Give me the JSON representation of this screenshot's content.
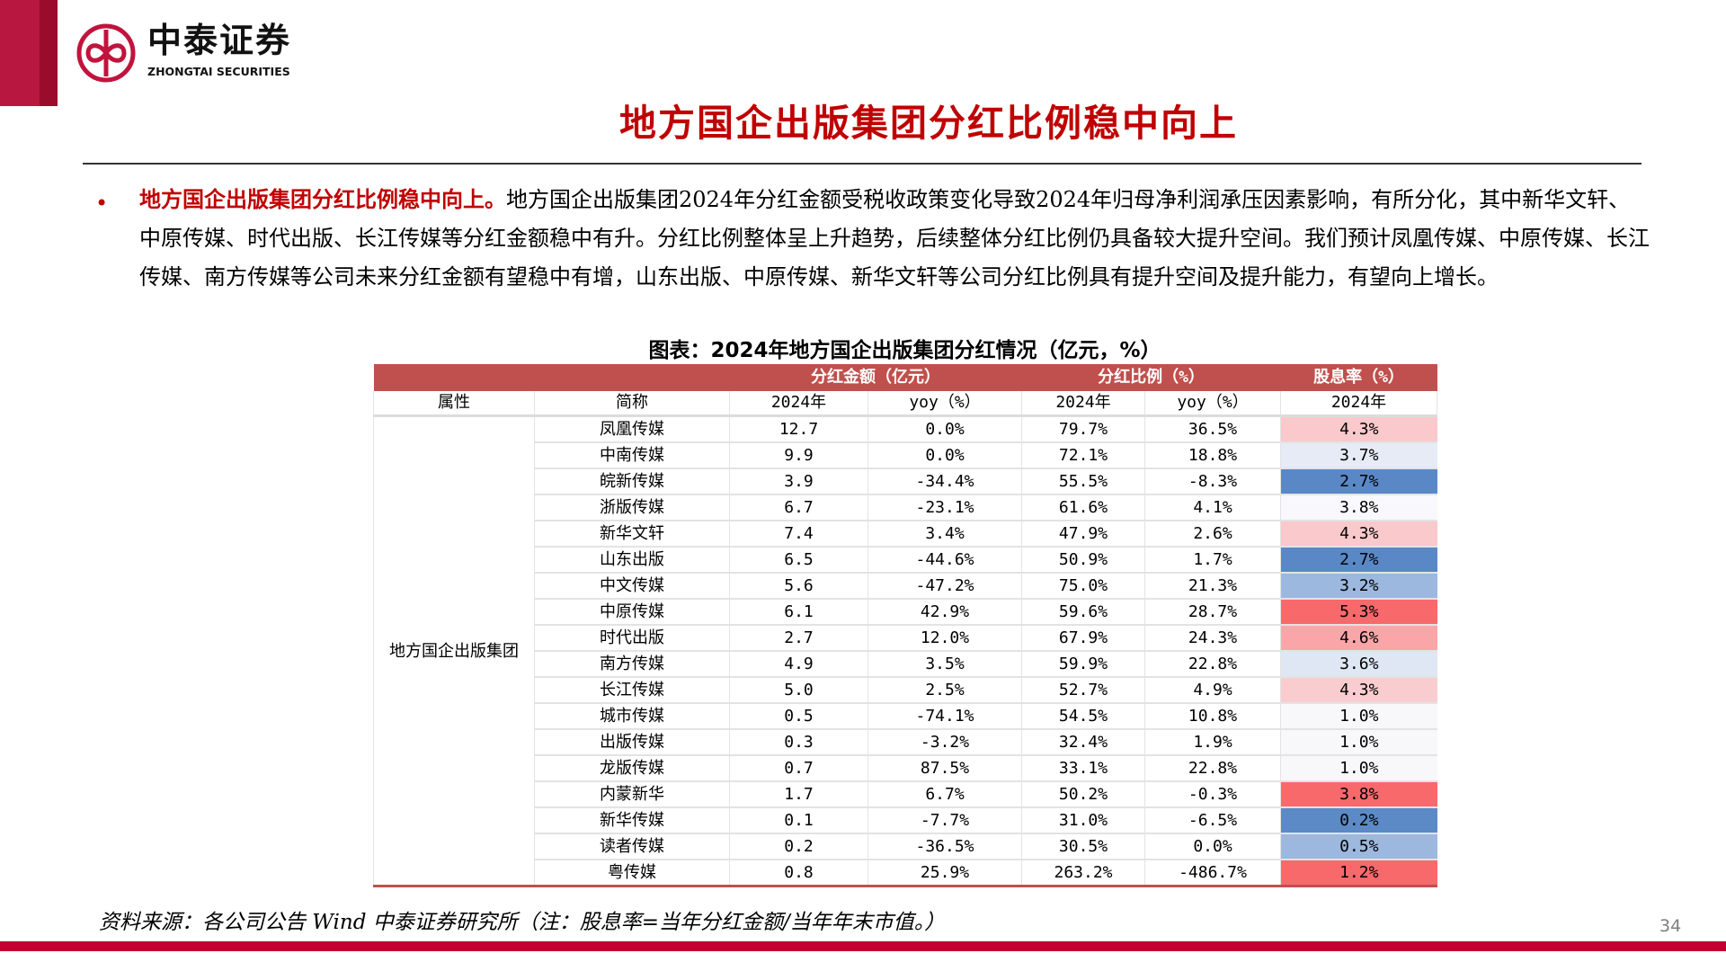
{
  "header": {
    "logo_cn": "中泰证券",
    "logo_en": "ZHONGTAI SECURITIES",
    "brand_color": "#c00030"
  },
  "title": "地方国企出版集团分红比例稳中向上",
  "bullet": {
    "lead": "地方国企出版集团分红比例稳中向上。",
    "body": "地方国企出版集团2024年分红金额受税收政策变化导致2024年归母净利润承压因素影响，有所分化，其中新华文轩、中原传媒、时代出版、长江传媒等分红金额稳中有升。分红比例整体呈上升趋势，后续整体分红比例仍具备较大提升空间。我们预计凤凰传媒、中原传媒、长江传媒、南方传媒等公司未来分红金额有望稳中有增，山东出版、中原传媒、新华文轩等公司分红比例具有提升空间及提升能力，有望向上增长。"
  },
  "table": {
    "caption": "图表：2024年地方国企出版集团分红情况（亿元，%）",
    "group_headers": [
      "分红金额（亿元）",
      "分红比例（%）",
      "股息率（%）"
    ],
    "columns": [
      "属性",
      "简称",
      "2024年",
      "yoy（%）",
      "2024年",
      "yoy（%）",
      "2024年"
    ],
    "group_label": "地方国企出版集团",
    "rows": [
      {
        "name": "凤凰传媒",
        "amount": "12.7",
        "amount_yoy": "0.0%",
        "ratio": "79.7%",
        "ratio_yoy": "36.5%",
        "yield": "4.3%",
        "yield_color": "#f9c9cc"
      },
      {
        "name": "中南传媒",
        "amount": "9.9",
        "amount_yoy": "0.0%",
        "ratio": "72.1%",
        "ratio_yoy": "18.8%",
        "yield": "3.7%",
        "yield_color": "#e6ebf6"
      },
      {
        "name": "皖新传媒",
        "amount": "3.9",
        "amount_yoy": "-34.4%",
        "ratio": "55.5%",
        "ratio_yoy": "-8.3%",
        "yield": "2.7%",
        "yield_color": "#5a88c6"
      },
      {
        "name": "浙版传媒",
        "amount": "6.7",
        "amount_yoy": "-23.1%",
        "ratio": "61.6%",
        "ratio_yoy": "4.1%",
        "yield": "3.8%",
        "yield_color": "#f9f9fd"
      },
      {
        "name": "新华文轩",
        "amount": "7.4",
        "amount_yoy": "3.4%",
        "ratio": "47.9%",
        "ratio_yoy": "2.6%",
        "yield": "4.3%",
        "yield_color": "#f9c9cc"
      },
      {
        "name": "山东出版",
        "amount": "6.5",
        "amount_yoy": "-44.6%",
        "ratio": "50.9%",
        "ratio_yoy": "1.7%",
        "yield": "2.7%",
        "yield_color": "#5a88c6"
      },
      {
        "name": "中文传媒",
        "amount": "5.6",
        "amount_yoy": "-47.2%",
        "ratio": "75.0%",
        "ratio_yoy": "21.3%",
        "yield": "3.2%",
        "yield_color": "#9db8df"
      },
      {
        "name": "中原传媒",
        "amount": "6.1",
        "amount_yoy": "42.9%",
        "ratio": "59.6%",
        "ratio_yoy": "28.7%",
        "yield": "5.3%",
        "yield_color": "#f8696b"
      },
      {
        "name": "时代出版",
        "amount": "2.7",
        "amount_yoy": "12.0%",
        "ratio": "67.9%",
        "ratio_yoy": "24.3%",
        "yield": "4.6%",
        "yield_color": "#faa6a8"
      },
      {
        "name": "南方传媒",
        "amount": "4.9",
        "amount_yoy": "3.5%",
        "ratio": "59.9%",
        "ratio_yoy": "22.8%",
        "yield": "3.6%",
        "yield_color": "#dfe7f4"
      },
      {
        "name": "长江传媒",
        "amount": "5.0",
        "amount_yoy": "2.5%",
        "ratio": "52.7%",
        "ratio_yoy": "4.9%",
        "yield": "4.3%",
        "yield_color": "#f9cdd0"
      },
      {
        "name": "城市传媒",
        "amount": "0.5",
        "amount_yoy": "-74.1%",
        "ratio": "54.5%",
        "ratio_yoy": "10.8%",
        "yield": "1.0%",
        "yield_color": "#f8f8fb"
      },
      {
        "name": "出版传媒",
        "amount": "0.3",
        "amount_yoy": "-3.2%",
        "ratio": "32.4%",
        "ratio_yoy": "1.9%",
        "yield": "1.0%",
        "yield_color": "#f8f8fb"
      },
      {
        "name": "龙版传媒",
        "amount": "0.7",
        "amount_yoy": "87.5%",
        "ratio": "33.1%",
        "ratio_yoy": "22.8%",
        "yield": "1.0%",
        "yield_color": "#f8f8fb"
      },
      {
        "name": "内蒙新华",
        "amount": "1.7",
        "amount_yoy": "6.7%",
        "ratio": "50.2%",
        "ratio_yoy": "-0.3%",
        "yield": "3.8%",
        "yield_color": "#f8696b"
      },
      {
        "name": "新华传媒",
        "amount": "0.1",
        "amount_yoy": "-7.7%",
        "ratio": "31.0%",
        "ratio_yoy": "-6.5%",
        "yield": "0.2%",
        "yield_color": "#5b8ac6"
      },
      {
        "name": "读者传媒",
        "amount": "0.2",
        "amount_yoy": "-36.5%",
        "ratio": "30.5%",
        "ratio_yoy": "0.0%",
        "yield": "0.5%",
        "yield_color": "#9db8df"
      },
      {
        "name": "粤传媒",
        "amount": "0.8",
        "amount_yoy": "25.9%",
        "ratio": "263.2%",
        "ratio_yoy": "-486.7%",
        "yield": "1.2%",
        "yield_color": "#f8696b"
      }
    ]
  },
  "source": "资料来源：各公司公告 Wind 中泰证券研究所（注：股息率=当年分红金额/当年年末市值。）",
  "page_number": "34"
}
